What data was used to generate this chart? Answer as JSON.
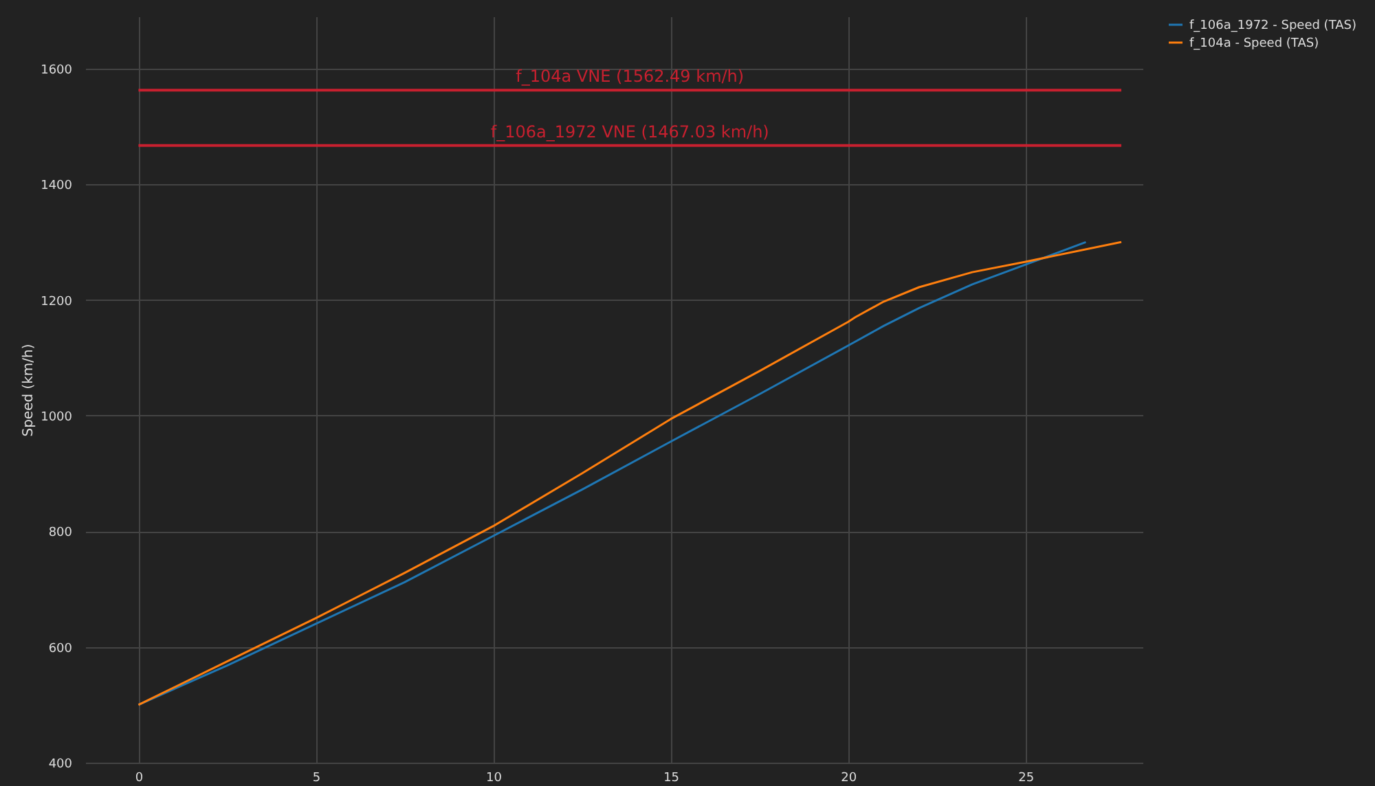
{
  "chart_data": {
    "type": "line",
    "ylabel": "Speed (km/h)",
    "xlim": [
      -1.5,
      28.3
    ],
    "xticks": [
      0,
      5,
      10,
      15,
      20,
      25
    ],
    "ylim": [
      400,
      1690
    ],
    "yticks": [
      400,
      600,
      800,
      1000,
      1200,
      1400,
      1600
    ],
    "grid": true,
    "legend": "top right",
    "marker": "none",
    "line_style": "solid",
    "series": [
      {
        "name": "f_106a_1972 - Speed (TAS)",
        "color": "#1f77b4",
        "x": [
          0,
          2.5,
          5,
          7.5,
          10,
          12.5,
          15,
          17.5,
          20,
          21,
          22,
          23.5,
          25,
          26.7
        ],
        "values": [
          500,
          568,
          640,
          712,
          792,
          872,
          955,
          1037,
          1121,
          1155,
          1186,
          1227,
          1261,
          1300
        ]
      },
      {
        "name": "f_104a - Speed (TAS)",
        "color": "#ff7f0e",
        "x": [
          0,
          2.5,
          5,
          7.5,
          10,
          12.5,
          15,
          17.5,
          20,
          20.2,
          21,
          22,
          23.5,
          25,
          27.7
        ],
        "values": [
          500,
          575,
          650,
          728,
          809,
          900,
          994,
          1077,
          1162,
          1170,
          1197,
          1222,
          1248,
          1266,
          1300
        ]
      }
    ],
    "ref_lines": [
      {
        "axis": "y",
        "value": 1562.49,
        "label": "f_104a VNE (1562.49 km/h)",
        "color": "#c8202f"
      },
      {
        "axis": "y",
        "value": 1467.03,
        "label": "f_106a_1972 VNE (1467.03 km/h)",
        "color": "#c8202f"
      }
    ]
  }
}
